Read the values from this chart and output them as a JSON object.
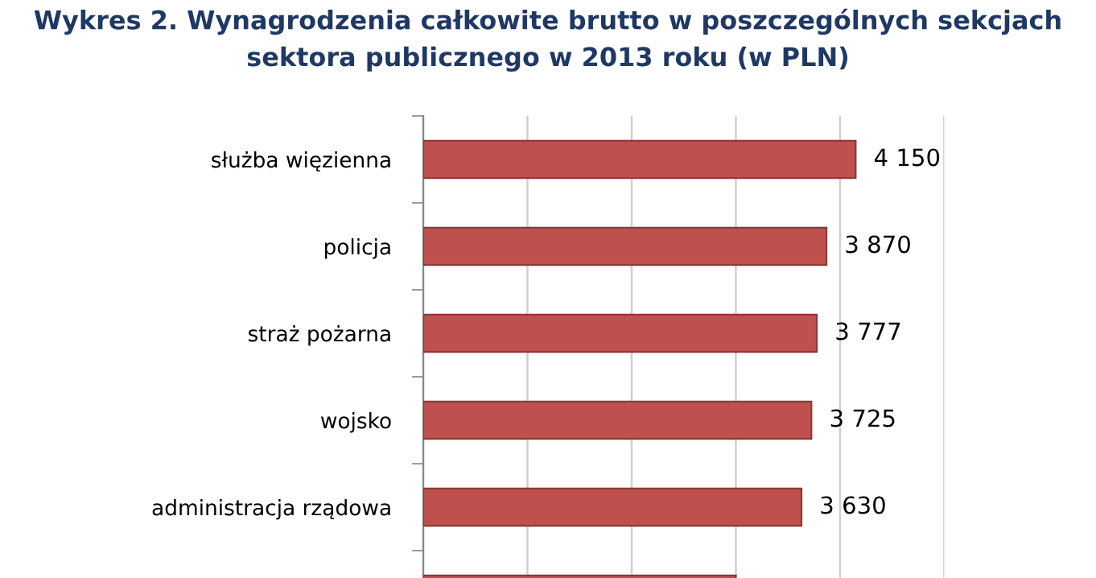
{
  "chart_data": {
    "type": "bar",
    "orientation": "horizontal",
    "title": "Wykres 2. Wynagrodzenia całkowite brutto w poszczególnych sekcjach\nsektora publicznego w 2013 roku (w PLN)",
    "categories": [
      "służba więzienna",
      "policja",
      "straż pożarna",
      "wojsko",
      "administracja rządowa",
      null
    ],
    "values": [
      4150,
      3870,
      3777,
      3725,
      3630,
      3000
    ],
    "value_labels": [
      "4 150",
      "3 870",
      "3 777",
      "3 725",
      "3 630",
      null
    ],
    "color": "#c0504d",
    "xlim": [
      0,
      5000
    ],
    "xticks": [
      {
        "value": 0,
        "label": null
      },
      {
        "value": 1000,
        "label": null
      },
      {
        "value": 2000,
        "label": null
      },
      {
        "value": 3000,
        "label": null
      },
      {
        "value": 4000,
        "label": null
      },
      {
        "value": 5000,
        "label": null
      }
    ],
    "tick_labels": "y",
    "grid": "x",
    "legend": false
  }
}
